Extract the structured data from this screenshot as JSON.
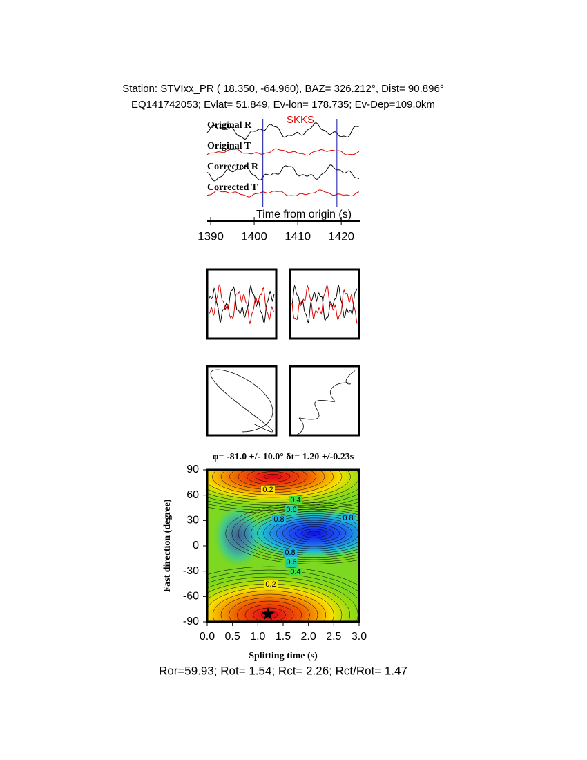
{
  "header": {
    "line1": "Station: STVIxx_PR (  18.350,  -64.960), BAZ=  326.212°, Dist=   90.896°",
    "line2": "EQ141742053; Evlat=  51.849, Ev-lon= 178.735; Ev-Dep=109.0km"
  },
  "waveforms": {
    "phase": "SKKS",
    "traces": [
      {
        "label": "Original R",
        "color": "#000000"
      },
      {
        "label": "Original T",
        "color": "#dd0000"
      },
      {
        "label": "Corrected R",
        "color": "#000000"
      },
      {
        "label": "Corrected T",
        "color": "#dd0000"
      }
    ],
    "xlabel": "Time from origin (s)",
    "xlim": [
      1389.2,
      1424.1
    ],
    "xticks": [
      1390,
      1400,
      1410,
      1420
    ],
    "window": [
      1402,
      1419
    ]
  },
  "contour": {
    "title": "φ= -81.0 +/- 10.0° δt= 1.20 +/-0.23s",
    "xlabel": "Splitting time (s)",
    "ylabel": "Fast direction (degree)",
    "xlim": [
      0,
      3
    ],
    "ylim": [
      -90,
      90
    ],
    "xticks": [
      {
        "value": 0,
        "label": "0.0"
      },
      0.5,
      {
        "value": 1,
        "label": "1.0"
      },
      1.5,
      {
        "value": 2,
        "label": "2.0"
      },
      2.5,
      {
        "value": 3,
        "label": "3.0"
      }
    ],
    "yticks": [
      -90,
      -60,
      -30,
      0,
      30,
      60,
      90
    ],
    "best": {
      "x": 1.2,
      "y": -81
    },
    "levels": [
      0.2,
      0.4,
      0.6,
      0.8
    ]
  },
  "footer": "Ror=59.93; Rot= 1.54; Rct= 2.26; Rct/Rot= 1.47"
}
